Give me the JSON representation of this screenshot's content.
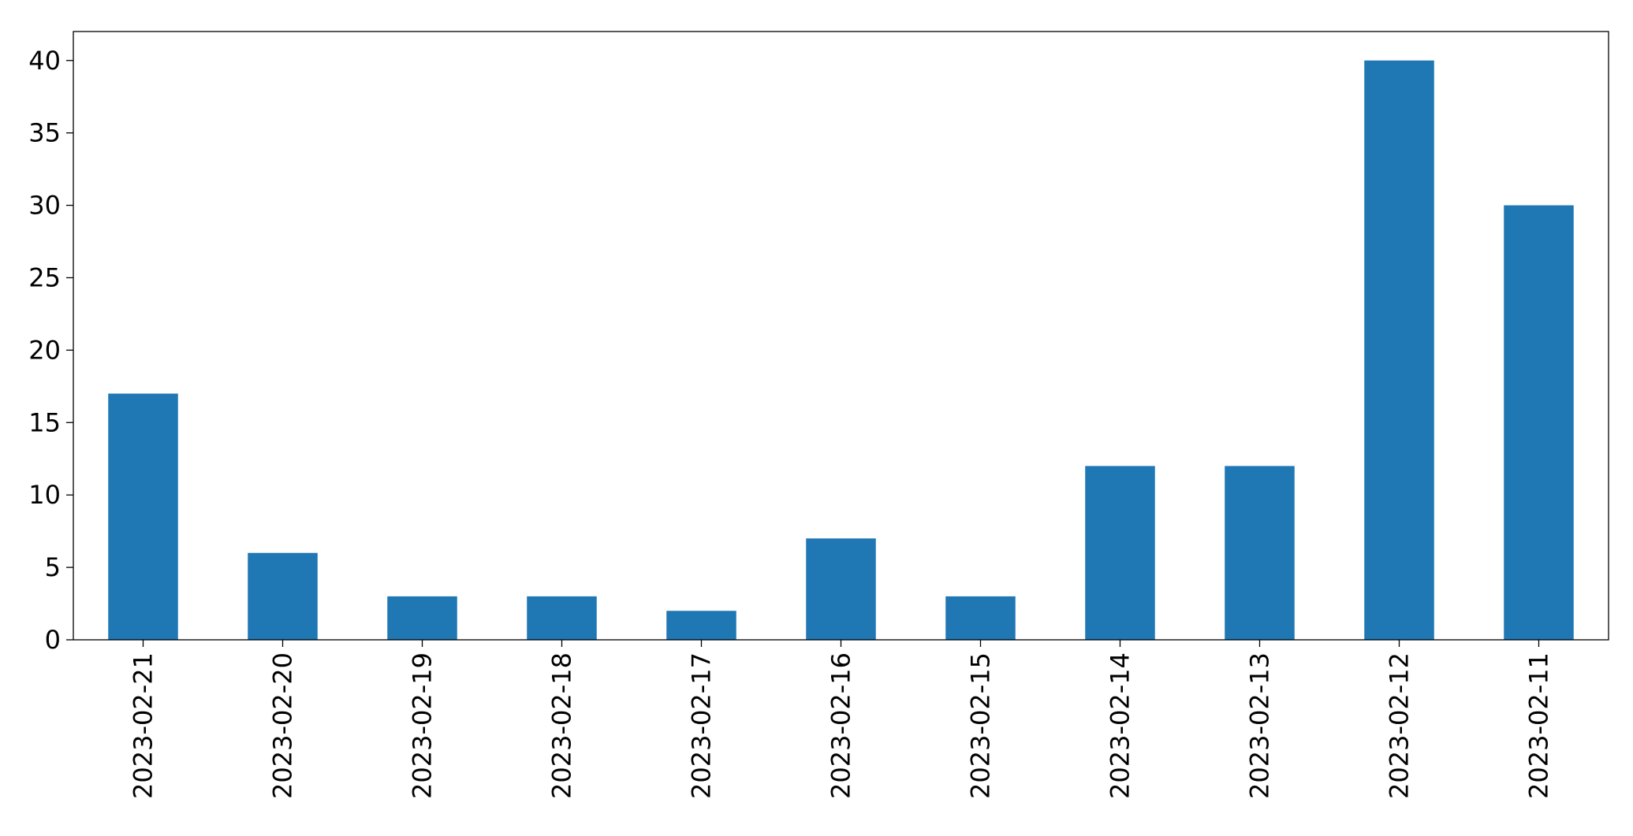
{
  "chart_data": {
    "type": "bar",
    "categories": [
      "2023-02-21",
      "2023-02-20",
      "2023-02-19",
      "2023-02-18",
      "2023-02-17",
      "2023-02-16",
      "2023-02-15",
      "2023-02-14",
      "2023-02-13",
      "2023-02-12",
      "2023-02-11"
    ],
    "values": [
      17,
      6,
      3,
      3,
      2,
      7,
      3,
      12,
      12,
      40,
      30
    ],
    "color": "#1f77b4",
    "ylim": [
      0,
      42
    ],
    "yticks": [
      0,
      5,
      10,
      15,
      20,
      25,
      30,
      35,
      40
    ],
    "grid": false
  }
}
